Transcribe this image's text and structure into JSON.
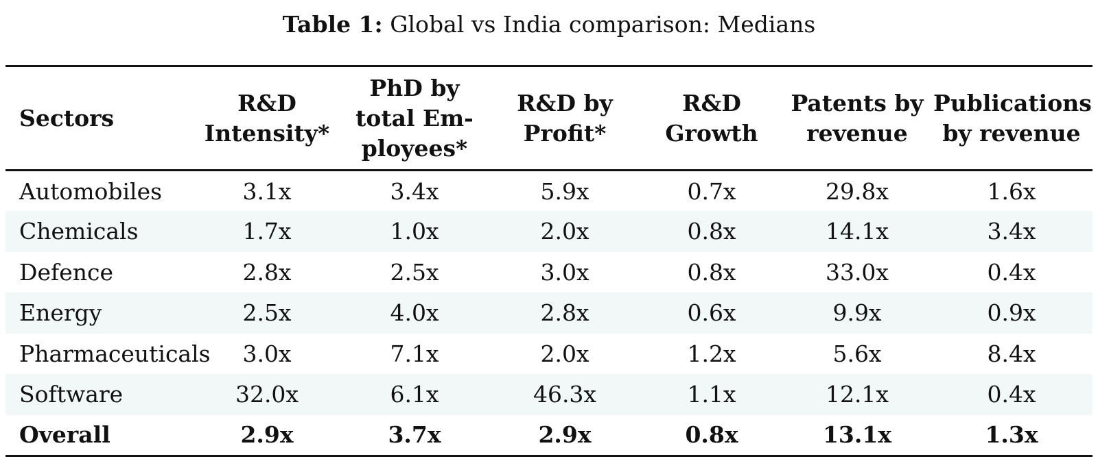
{
  "caption": {
    "label": "Table 1:",
    "text": " Global vs India comparison: Medians"
  },
  "table": {
    "headers": [
      "Sectors",
      "R&D Intensity*",
      "PhD by total Em-ployees*",
      "R&D by Profit*",
      "R&D Growth",
      "Patents by revenue",
      "Publications by revenue"
    ],
    "rows": [
      [
        "Automobiles",
        "3.1x",
        "3.4x",
        "5.9x",
        "0.7x",
        "29.8x",
        "1.6x"
      ],
      [
        "Chemicals",
        "1.7x",
        "1.0x",
        "2.0x",
        "0.8x",
        "14.1x",
        "3.4x"
      ],
      [
        "Defence",
        "2.8x",
        "2.5x",
        "3.0x",
        "0.8x",
        "33.0x",
        "0.4x"
      ],
      [
        "Energy",
        "2.5x",
        "4.0x",
        "2.8x",
        "0.6x",
        "9.9x",
        "0.9x"
      ],
      [
        "Pharmaceuticals",
        "3.0x",
        "7.1x",
        "2.0x",
        "1.2x",
        "5.6x",
        "8.4x"
      ],
      [
        "Software",
        "32.0x",
        "6.1x",
        "46.3x",
        "1.1x",
        "12.1x",
        "0.4x"
      ]
    ],
    "overall": [
      "Overall",
      "2.9x",
      "3.7x",
      "2.9x",
      "0.8x",
      "13.1x",
      "1.3x"
    ]
  }
}
